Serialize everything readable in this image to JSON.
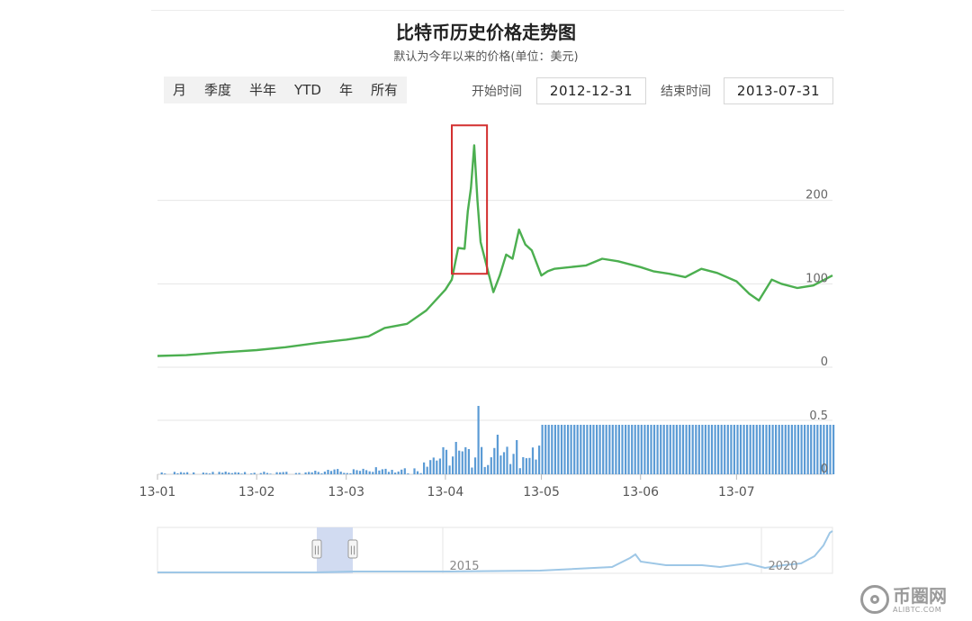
{
  "header": {
    "title": "比特币历史价格走势图",
    "subtitle": "默认为今年以来的价格(单位：美元)"
  },
  "range_buttons": [
    {
      "label": "月"
    },
    {
      "label": "季度"
    },
    {
      "label": "半年"
    },
    {
      "label": "YTD"
    },
    {
      "label": "年"
    },
    {
      "label": "所有"
    }
  ],
  "date_range": {
    "start_label": "开始时间",
    "start_value": "2012-12-31",
    "end_label": "结束时间",
    "end_value": "2013-07-31"
  },
  "watermark": {
    "name": "币圈网",
    "domain": "ALIBTC.COM"
  },
  "colors": {
    "price_line": "#4caf50",
    "volume_bar": "#5b9bd5",
    "highlight_box": "#d32f2f",
    "navigator_line": "#9ec7e6",
    "navigator_selection": "#c9d5ee"
  },
  "chart_data": [
    {
      "type": "line",
      "x": [
        "2013-01-01",
        "2013-01-10",
        "2013-01-20",
        "2013-02-01",
        "2013-02-10",
        "2013-02-20",
        "2013-03-01",
        "2013-03-08",
        "2013-03-13",
        "2013-03-20",
        "2013-03-26",
        "2013-04-01",
        "2013-04-03",
        "2013-04-05",
        "2013-04-07",
        "2013-04-08",
        "2013-04-09",
        "2013-04-10",
        "2013-04-11",
        "2013-04-12",
        "2013-04-14",
        "2013-04-16",
        "2013-04-18",
        "2013-04-20",
        "2013-04-22",
        "2013-04-24",
        "2013-04-26",
        "2013-04-28",
        "2013-05-01",
        "2013-05-03",
        "2013-05-05",
        "2013-05-10",
        "2013-05-15",
        "2013-05-20",
        "2013-05-25",
        "2013-06-01",
        "2013-06-05",
        "2013-06-10",
        "2013-06-15",
        "2013-06-20",
        "2013-06-25",
        "2013-07-01",
        "2013-07-05",
        "2013-07-08",
        "2013-07-12",
        "2013-07-15",
        "2013-07-20",
        "2013-07-25",
        "2013-07-31"
      ],
      "y": [
        13.5,
        14.5,
        17.5,
        20.5,
        24,
        29,
        33,
        37,
        47,
        52,
        68,
        93,
        105,
        143,
        142,
        187,
        215,
        266,
        200,
        150,
        120,
        90,
        110,
        135,
        130,
        165,
        147,
        140,
        110,
        115,
        118,
        120,
        122,
        130,
        127,
        120,
        115,
        112,
        108,
        118,
        113,
        103,
        88,
        80,
        105,
        100,
        95,
        98,
        110
      ],
      "ylim": [
        0,
        300
      ],
      "y_ticks": [
        0,
        100,
        200
      ],
      "highlight_range": [
        "2013-04-03",
        "2013-04-14"
      ],
      "grid": true
    },
    {
      "type": "bar",
      "y_ticks": [
        "0",
        "0.5"
      ],
      "x_ticks": [
        "13-01",
        "13-02",
        "13-03",
        "13-04",
        "13-05",
        "13-06",
        "13-07"
      ],
      "grid": true
    }
  ],
  "navigator": {
    "labels": [
      "2015",
      "2020"
    ],
    "handle_left": "||",
    "handle_right": "||"
  }
}
